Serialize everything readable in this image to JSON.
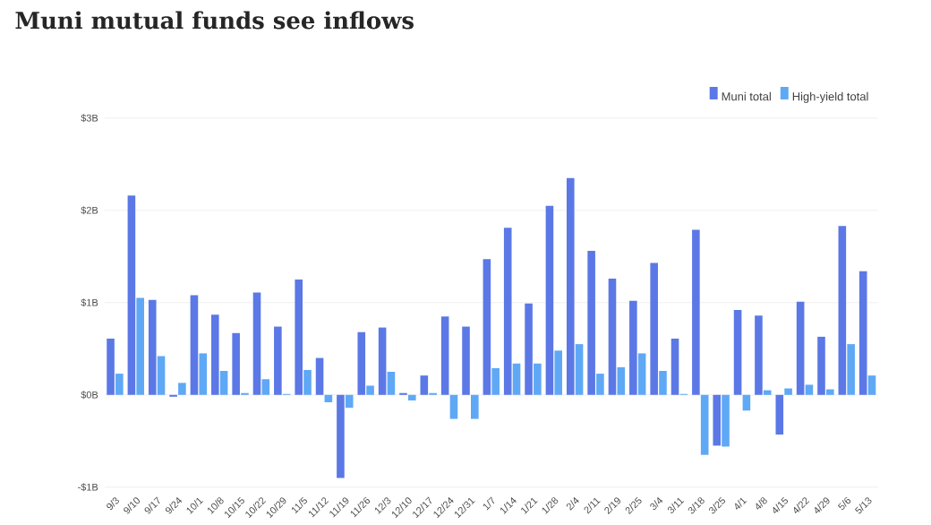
{
  "chart_data": {
    "type": "bar",
    "title": "Muni mutual funds see inflows",
    "categories": [
      "9/3",
      "9/10",
      "9/17",
      "9/24",
      "10/1",
      "10/8",
      "10/15",
      "10/22",
      "10/29",
      "11/5",
      "11/12",
      "11/19",
      "11/26",
      "12/3",
      "12/10",
      "12/17",
      "12/24",
      "12/31",
      "1/7",
      "1/14",
      "1/21",
      "1/28",
      "2/4",
      "2/11",
      "2/19",
      "2/25",
      "3/4",
      "3/11",
      "3/18",
      "3/25",
      "4/1",
      "4/8",
      "4/15",
      "4/22",
      "4/29",
      "5/6",
      "5/13"
    ],
    "series": [
      {
        "name": "Muni total",
        "color": "#5b78e6",
        "values": [
          0.61,
          2.16,
          1.03,
          -0.02,
          1.08,
          0.87,
          0.67,
          1.11,
          0.74,
          1.25,
          0.4,
          -0.9,
          0.68,
          0.73,
          0.02,
          0.21,
          0.85,
          0.74,
          1.47,
          1.81,
          0.99,
          2.05,
          2.35,
          1.56,
          1.26,
          1.02,
          1.43,
          0.61,
          1.79,
          -0.55,
          0.92,
          0.86,
          -0.43,
          1.01,
          0.63,
          1.83,
          1.34
        ]
      },
      {
        "name": "High-yield total",
        "color": "#5fa8f5",
        "values": [
          0.23,
          1.05,
          0.42,
          0.13,
          0.45,
          0.26,
          0.02,
          0.17,
          0.01,
          0.27,
          -0.08,
          -0.14,
          0.1,
          0.25,
          -0.06,
          0.02,
          -0.26,
          -0.26,
          0.29,
          0.34,
          0.34,
          0.48,
          0.55,
          0.23,
          0.3,
          0.45,
          0.26,
          0.01,
          -0.65,
          -0.56,
          -0.17,
          0.05,
          0.07,
          0.11,
          0.06,
          0.55,
          0.21
        ]
      }
    ],
    "ylim": [
      -1,
      3
    ],
    "yticks": [
      {
        "value": -1,
        "label": "-$1B"
      },
      {
        "value": 0,
        "label": "$0B"
      },
      {
        "value": 1,
        "label": "$1B"
      },
      {
        "value": 2,
        "label": "$2B"
      },
      {
        "value": 3,
        "label": "$3B"
      }
    ],
    "grid": "y",
    "legend": "top right"
  }
}
